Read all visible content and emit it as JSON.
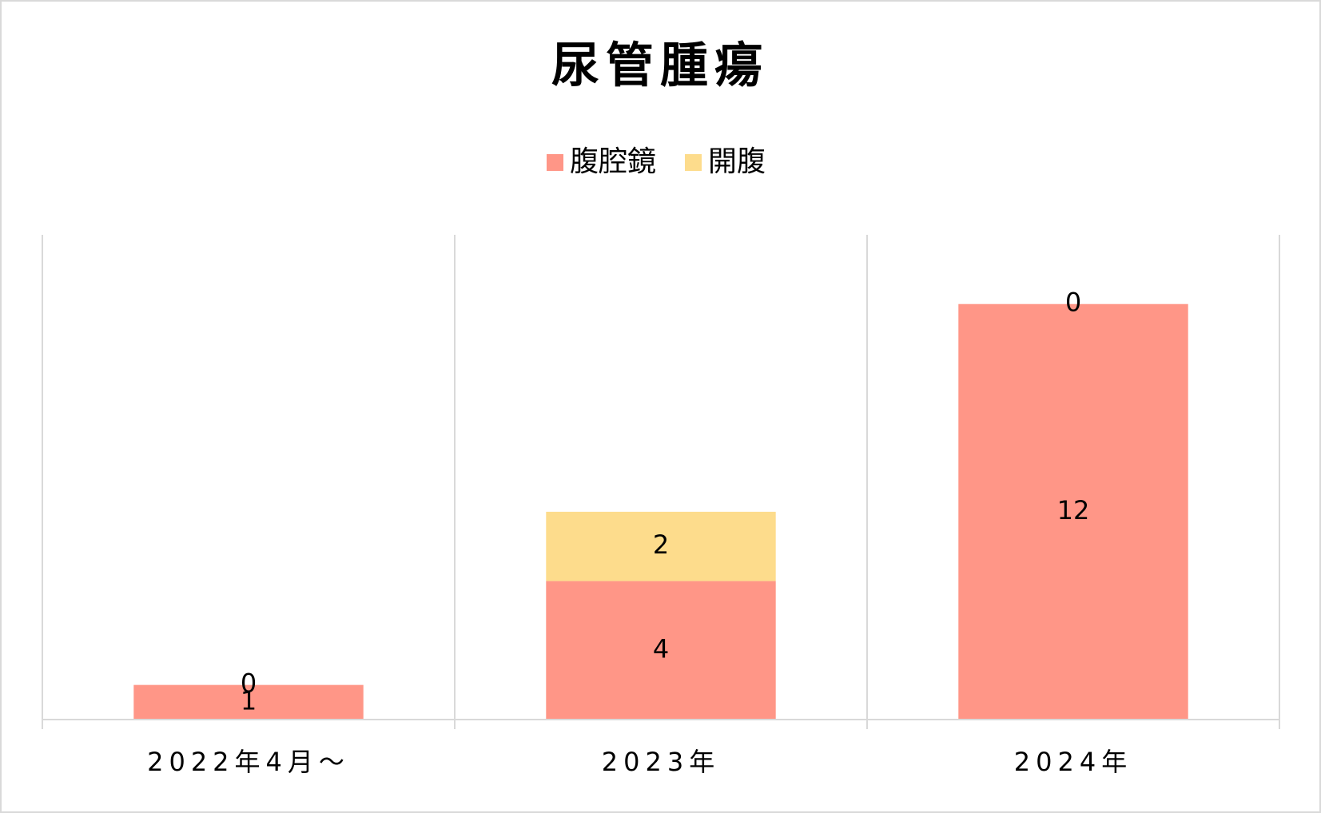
{
  "chart_data": {
    "type": "stacked-bar",
    "title": "尿管腫瘍",
    "categories": [
      "2022年4月～",
      "2023年",
      "2024年"
    ],
    "series": [
      {
        "name": "腹腔鏡",
        "color": "#ff9687",
        "values": [
          1,
          4,
          12
        ]
      },
      {
        "name": "開腹",
        "color": "#fddc8c",
        "values": [
          0,
          2,
          0
        ]
      }
    ],
    "ylim": [
      0,
      14
    ],
    "legend": "top"
  }
}
